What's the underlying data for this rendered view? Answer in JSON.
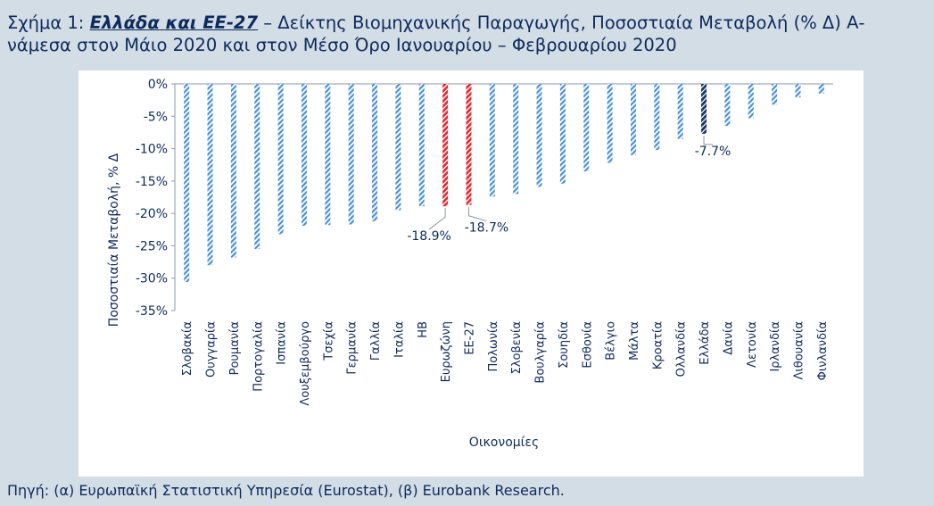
{
  "title": {
    "prefix": "Σχήμα 1: ",
    "highlight": "Ελλάδα και ΕΕ-27",
    "rest": " – Δείκτης Βιομηχανικής Παραγωγής, Ποσοστιαία Μεταβολή (% Δ) Α-νάμεσα στον Μάιο 2020 και στον Μέσο Όρο Ιανουαρίου – Φεβρουαρίου 2020"
  },
  "footer": "Πηγή: (α) Ευρωπαϊκή Στατιστική Υπηρεσία (Eurostat), (β) Eurobank Research.",
  "colors": {
    "default": "#4a90d9",
    "highlight_red": "#e8232a",
    "highlight_navy": "#1a3566",
    "text": "#0d2a5c",
    "background": "#d3dde5"
  },
  "chart_data": {
    "type": "bar",
    "xlabel": "Οικονομίες",
    "ylabel": "Ποσοστιαία Μεταβολή, % Δ",
    "ylim": [
      -35,
      0
    ],
    "yticks": [
      0,
      -5,
      -10,
      -15,
      -20,
      -25,
      -30,
      -35
    ],
    "grid": false,
    "categories": [
      "Σλοβακία",
      "Ουγγαρία",
      "Ρουμανία",
      "Πορτογαλία",
      "Ισπανία",
      "Λουξεμβούργο",
      "Τσεχία",
      "Γερμανία",
      "Γαλλία",
      "Ιταλία",
      "ΗΒ",
      "Ευρωζώνη",
      "ΕΕ-27",
      "Πολωνία",
      "Σλοβενία",
      "Βουλγαρία",
      "Σουηδία",
      "Εσθονία",
      "Βέλγιο",
      "Μάλτα",
      "Κροατία",
      "Ολλανδία",
      "Ελλάδα",
      "Δανία",
      "Λετονία",
      "Ιρλανδία",
      "Λιθουανία",
      "Φινλανδία"
    ],
    "values": [
      -30.6,
      -28.0,
      -26.8,
      -25.5,
      -23.2,
      -21.9,
      -21.8,
      -21.7,
      -21.2,
      -19.5,
      -18.9,
      -18.9,
      -18.7,
      -17.4,
      -17.0,
      -15.9,
      -15.4,
      -13.5,
      -12.2,
      -11.0,
      -10.2,
      -8.5,
      -7.7,
      -6.5,
      -5.3,
      -3.2,
      -2.1,
      -1.5
    ],
    "highlights": {
      "Ευρωζώνη": "red",
      "ΕΕ-27": "red",
      "Ελλάδα": "navy"
    },
    "annotations": [
      {
        "category": "Ευρωζώνη",
        "label": "-18.9%"
      },
      {
        "category": "ΕΕ-27",
        "label": "-18.7%"
      },
      {
        "category": "Ελλάδα",
        "label": "-7.7%"
      }
    ]
  }
}
